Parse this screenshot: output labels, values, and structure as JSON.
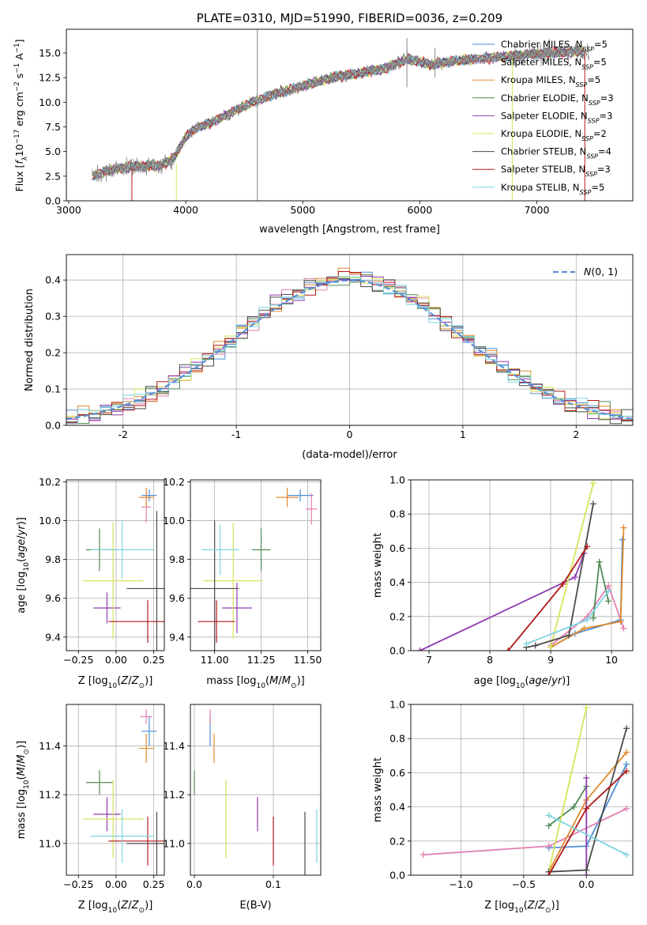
{
  "colors": {
    "Chabrier MILES": "#4c8fd6",
    "Salpeter MILES": "#e27fb0",
    "Kroupa MILES": "#e08a2c",
    "Chabrier ELODIE": "#4f8a55",
    "Salpeter ELODIE": "#8e3bb0",
    "Kroupa ELODIE": "#d7e35a",
    "Chabrier STELIB": "#4a4a4a",
    "Salpeter STELIB": "#b01818",
    "Kroupa STELIB": "#7dd4e0",
    "observed": "#888888",
    "normal_curve": "#5b8fd6"
  },
  "chart_data": [
    {
      "id": "spectrum",
      "type": "line",
      "title": "PLATE=0310, MJD=51990, FIBERID=0036, z=0.209",
      "xlabel": "wavelength [Angstrom, rest frame]",
      "ylabel": "Flux [f_λ 10^-17 erg cm^-2 s^-1 A^-1]",
      "xlim": [
        2980,
        7820
      ],
      "ylim": [
        0,
        17.4
      ],
      "xticks": [
        3000,
        4000,
        5000,
        6000,
        7000
      ],
      "yticks": [
        0.0,
        2.5,
        5.0,
        7.5,
        10.0,
        12.5,
        15.0
      ],
      "legend_position": "top-right",
      "legend": [
        {
          "base": "Chabrier MILES, N",
          "sub": "SSP",
          "tail": "=5"
        },
        {
          "base": "Salpeter MILES, N",
          "sub": "SSP",
          "tail": "=5"
        },
        {
          "base": "Kroupa MILES, N",
          "sub": "SSP",
          "tail": "=5"
        },
        {
          "base": "Chabrier ELODIE, N",
          "sub": "SSP",
          "tail": "=3"
        },
        {
          "base": "Salpeter ELODIE, N",
          "sub": "SSP",
          "tail": "=3"
        },
        {
          "base": "Kroupa ELODIE, N",
          "sub": "SSP",
          "tail": "=2"
        },
        {
          "base": "Chabrier STELIB, N",
          "sub": "SSP",
          "tail": "=4"
        },
        {
          "base": "Salpeter STELIB, N",
          "sub": "SSP",
          "tail": "=3"
        },
        {
          "base": "Kroupa STELIB, N",
          "sub": "SSP",
          "tail": "=5"
        }
      ],
      "continuum": {
        "x": [
          3200,
          3400,
          3600,
          3800,
          3900,
          4000,
          4100,
          4300,
          4500,
          4700,
          4900,
          5100,
          5300,
          5500,
          5700,
          5900,
          6100,
          6300,
          6500,
          6700,
          6900,
          7100,
          7300,
          7400
        ],
        "y": [
          2.5,
          3.3,
          3.5,
          3.6,
          4.4,
          6.5,
          7.4,
          8.4,
          9.6,
          10.6,
          11.3,
          12.0,
          12.6,
          13.0,
          13.4,
          14.4,
          13.8,
          14.2,
          14.4,
          14.6,
          14.8,
          15.0,
          15.1,
          15.1
        ]
      },
      "spikes": [
        {
          "x": 4612,
          "y0": 0,
          "y1": 17.4,
          "color": "observed"
        },
        {
          "x": 3540,
          "y0": 0,
          "y1": 3.3,
          "color": "Salpeter STELIB"
        },
        {
          "x": 3920,
          "y0": 0,
          "y1": 3.8,
          "color": "Kroupa ELODIE"
        },
        {
          "x": 5890,
          "y0": 11.5,
          "y1": 16.5,
          "color": "observed"
        },
        {
          "x": 6130,
          "y0": 12.5,
          "y1": 15.5,
          "color": "observed"
        },
        {
          "x": 6790,
          "y0": 0,
          "y1": 14.6,
          "color": "Kroupa ELODIE"
        },
        {
          "x": 7410,
          "y0": 0,
          "y1": 15.1,
          "color": "Salpeter STELIB"
        }
      ]
    },
    {
      "id": "residuals",
      "type": "bar",
      "xlabel": "(data-model)/error",
      "ylabel": "Normed distribution",
      "xlim": [
        -2.5,
        2.5
      ],
      "ylim": [
        0,
        0.47
      ],
      "xticks": [
        -2,
        -1,
        0,
        1,
        2
      ],
      "yticks": [
        0.0,
        0.1,
        0.2,
        0.3,
        0.4
      ],
      "legend": "N(0,1)",
      "legend_position": "top-right",
      "bins": {
        "start": -2.5,
        "width": 0.1
      }
    },
    {
      "id": "age_vs_Z",
      "type": "scatter",
      "xlabel": "Z [log10(Z/Z⊙)]",
      "ylabel": "age  [log10(age/yr)]",
      "xlim": [
        -0.33,
        0.32
      ],
      "ylim": [
        9.33,
        10.21
      ],
      "xticks": [
        -0.25,
        0.0,
        0.25
      ],
      "xticklabels": [
        "−0.25",
        "0.00",
        "0.25"
      ],
      "yticks": [
        9.4,
        9.6,
        9.8,
        10.0,
        10.2
      ],
      "points": [
        {
          "name": "Chabrier MILES",
          "x": 0.22,
          "xerr": 0.05,
          "y": 10.13,
          "yerr": 0.03
        },
        {
          "name": "Salpeter MILES",
          "x": 0.2,
          "xerr": 0.03,
          "y": 10.07,
          "yerr": 0.08
        },
        {
          "name": "Kroupa MILES",
          "x": 0.2,
          "xerr": 0.05,
          "y": 10.12,
          "yerr": 0.05
        },
        {
          "name": "Chabrier ELODIE",
          "x": -0.11,
          "xerr": 0.09,
          "y": 9.85,
          "yerr": 0.11
        },
        {
          "name": "Salpeter ELODIE",
          "x": -0.06,
          "xerr": 0.09,
          "y": 9.55,
          "yerr": 0.08
        },
        {
          "name": "Kroupa ELODIE",
          "x": -0.02,
          "xerr": 0.2,
          "y": 9.69,
          "yerr": 0.3
        },
        {
          "name": "Chabrier STELIB",
          "x": 0.27,
          "xerr": 0.2,
          "y": 9.65,
          "yerr": 0.4
        },
        {
          "name": "Salpeter STELIB",
          "x": 0.21,
          "xerr": 0.26,
          "y": 9.48,
          "yerr": 0.11
        },
        {
          "name": "Kroupa STELIB",
          "x": 0.04,
          "xerr": 0.21,
          "y": 9.85,
          "yerr": 0.15
        }
      ]
    },
    {
      "id": "age_vs_mass",
      "type": "scatter",
      "xlabel": "mass [log10(M/M⊙)]",
      "ylabel": "",
      "xlim": [
        10.87,
        11.57
      ],
      "ylim": [
        9.33,
        10.21
      ],
      "xticks": [
        11.0,
        11.25,
        11.5
      ],
      "xticklabels": [
        "11.00",
        "11.25",
        "11.50"
      ],
      "yticks": [
        9.4,
        9.6,
        9.8,
        10.0,
        10.2
      ],
      "points": [
        {
          "name": "Chabrier MILES",
          "x": 11.46,
          "xerr": 0.07,
          "y": 10.13,
          "yerr": 0.03
        },
        {
          "name": "Salpeter MILES",
          "x": 11.52,
          "xerr": 0.03,
          "y": 10.06,
          "yerr": 0.08
        },
        {
          "name": "Kroupa MILES",
          "x": 11.39,
          "xerr": 0.06,
          "y": 10.12,
          "yerr": 0.05
        },
        {
          "name": "Chabrier ELODIE",
          "x": 11.25,
          "xerr": 0.05,
          "y": 9.85,
          "yerr": 0.11
        },
        {
          "name": "Salpeter ELODIE",
          "x": 11.12,
          "xerr": 0.08,
          "y": 9.55,
          "yerr": 0.13
        },
        {
          "name": "Kroupa ELODIE",
          "x": 11.1,
          "xerr": 0.16,
          "y": 9.69,
          "yerr": 0.3
        },
        {
          "name": "Chabrier STELIB",
          "x": 11.0,
          "xerr": 0.13,
          "y": 9.65,
          "yerr": 0.35
        },
        {
          "name": "Salpeter STELIB",
          "x": 11.01,
          "xerr": 0.1,
          "y": 9.48,
          "yerr": 0.11
        },
        {
          "name": "Kroupa STELIB",
          "x": 11.03,
          "xerr": 0.1,
          "y": 9.85,
          "yerr": 0.13
        }
      ]
    },
    {
      "id": "mass_weight_vs_age",
      "type": "line",
      "xlabel": "age  [log10(age/yr)]",
      "ylabel": "mass weight",
      "xlim": [
        6.7,
        10.35
      ],
      "ylim": [
        0.0,
        1.0
      ],
      "xticks": [
        7,
        8,
        9,
        10
      ],
      "yticks": [
        0.0,
        0.2,
        0.4,
        0.6,
        0.8,
        1.0
      ],
      "series": [
        {
          "name": "Chabrier MILES",
          "x": [
            9.0,
            9.4,
            10.15,
            10.18
          ],
          "y": [
            0.02,
            0.1,
            0.18,
            0.65
          ]
        },
        {
          "name": "Salpeter MILES",
          "x": [
            9.0,
            9.6,
            9.95,
            10.2
          ],
          "y": [
            0.03,
            0.2,
            0.38,
            0.13
          ]
        },
        {
          "name": "Kroupa MILES",
          "x": [
            9.0,
            9.55,
            10.15,
            10.2
          ],
          "y": [
            0.02,
            0.13,
            0.17,
            0.72
          ]
        },
        {
          "name": "Chabrier ELODIE",
          "x": [
            9.7,
            9.8,
            9.95
          ],
          "y": [
            0.19,
            0.52,
            0.29
          ]
        },
        {
          "name": "Salpeter ELODIE",
          "x": [
            6.85,
            9.4,
            9.55
          ],
          "y": [
            0.0,
            0.43,
            0.57
          ]
        },
        {
          "name": "Kroupa ELODIE",
          "x": [
            9.0,
            9.7
          ],
          "y": [
            0.02,
            0.98
          ]
        },
        {
          "name": "Chabrier STELIB",
          "x": [
            8.6,
            8.75,
            9.3,
            9.7
          ],
          "y": [
            0.02,
            0.03,
            0.09,
            0.86
          ]
        },
        {
          "name": "Salpeter STELIB",
          "x": [
            8.3,
            9.2,
            9.6
          ],
          "y": [
            0.0,
            0.39,
            0.61
          ]
        },
        {
          "name": "Kroupa STELIB",
          "x": [
            8.6,
            9.6,
            9.95
          ],
          "y": [
            0.04,
            0.18,
            0.35
          ]
        }
      ]
    },
    {
      "id": "mass_vs_Z",
      "type": "scatter",
      "xlabel": "Z [log10(Z/Z⊙)]",
      "ylabel": "mass [log10(M/M⊙)]",
      "xlim": [
        -0.33,
        0.32
      ],
      "ylim": [
        10.87,
        11.57
      ],
      "xticks": [
        -0.25,
        0.0,
        0.25
      ],
      "xticklabels": [
        "−0.25",
        "0.00",
        "0.25"
      ],
      "yticks": [
        11.0,
        11.2,
        11.4
      ],
      "points": [
        {
          "name": "Chabrier MILES",
          "x": 0.22,
          "xerr": 0.05,
          "y": 11.46,
          "yerr": 0.06
        },
        {
          "name": "Salpeter MILES",
          "x": 0.2,
          "xerr": 0.04,
          "y": 11.52,
          "yerr": 0.03
        },
        {
          "name": "Kroupa MILES",
          "x": 0.2,
          "xerr": 0.05,
          "y": 11.39,
          "yerr": 0.06
        },
        {
          "name": "Chabrier ELODIE",
          "x": -0.11,
          "xerr": 0.09,
          "y": 11.25,
          "yerr": 0.05
        },
        {
          "name": "Salpeter ELODIE",
          "x": -0.06,
          "xerr": 0.09,
          "y": 11.12,
          "yerr": 0.07
        },
        {
          "name": "Kroupa ELODIE",
          "x": -0.02,
          "xerr": 0.2,
          "y": 11.1,
          "yerr": 0.16
        },
        {
          "name": "Chabrier STELIB",
          "x": 0.27,
          "xerr": 0.2,
          "y": 11.0,
          "yerr": 0.13
        },
        {
          "name": "Salpeter STELIB",
          "x": 0.21,
          "xerr": 0.26,
          "y": 11.01,
          "yerr": 0.1
        },
        {
          "name": "Kroupa STELIB",
          "x": 0.04,
          "xerr": 0.21,
          "y": 11.03,
          "yerr": 0.11
        }
      ]
    },
    {
      "id": "mass_vs_EBV",
      "type": "scatter",
      "xlabel": "E(B-V)",
      "ylabel": "",
      "xlim": [
        -0.005,
        0.16
      ],
      "ylim": [
        10.87,
        11.57
      ],
      "xticks": [
        0.0,
        0.1
      ],
      "xticklabels": [
        "0.0",
        "0.1"
      ],
      "yticks": [
        11.0,
        11.2,
        11.4
      ],
      "points": [
        {
          "name": "Chabrier MILES",
          "x": 0.02,
          "xerr": 0.0,
          "y": 11.46,
          "yerr": 0.06
        },
        {
          "name": "Salpeter MILES",
          "x": 0.02,
          "xerr": 0.0,
          "y": 11.52,
          "yerr": 0.03
        },
        {
          "name": "Kroupa MILES",
          "x": 0.025,
          "xerr": 0.0,
          "y": 11.39,
          "yerr": 0.06
        },
        {
          "name": "Chabrier ELODIE",
          "x": 0.0,
          "xerr": 0.0,
          "y": 11.25,
          "yerr": 0.05
        },
        {
          "name": "Salpeter ELODIE",
          "x": 0.08,
          "xerr": 0.0,
          "y": 11.12,
          "yerr": 0.07
        },
        {
          "name": "Kroupa ELODIE",
          "x": 0.04,
          "xerr": 0.0,
          "y": 11.1,
          "yerr": 0.16
        },
        {
          "name": "Chabrier STELIB",
          "x": 0.14,
          "xerr": 0.0,
          "y": 11.0,
          "yerr": 0.13
        },
        {
          "name": "Salpeter STELIB",
          "x": 0.1,
          "xerr": 0.0,
          "y": 11.01,
          "yerr": 0.1
        },
        {
          "name": "Kroupa STELIB",
          "x": 0.155,
          "xerr": 0.0,
          "y": 11.03,
          "yerr": 0.11
        }
      ]
    },
    {
      "id": "mass_weight_vs_Z",
      "type": "line",
      "xlabel": "Z [log10(Z/Z⊙)]",
      "ylabel": "mass weight",
      "xlim": [
        -1.4,
        0.37
      ],
      "ylim": [
        0.0,
        1.0
      ],
      "xticks": [
        -1.0,
        -0.5,
        0.0
      ],
      "xticklabels": [
        "−1.0",
        "−0.5",
        "0.0"
      ],
      "yticks": [
        0.0,
        0.2,
        0.4,
        0.6,
        0.8,
        1.0
      ],
      "series": [
        {
          "name": "Chabrier MILES",
          "x": [
            -0.3,
            0.0,
            0.32
          ],
          "y": [
            0.16,
            0.17,
            0.65
          ]
        },
        {
          "name": "Salpeter MILES",
          "x": [
            -1.3,
            -0.3,
            0.32
          ],
          "y": [
            0.12,
            0.17,
            0.39
          ]
        },
        {
          "name": "Kroupa MILES",
          "x": [
            -0.3,
            0.0,
            0.32
          ],
          "y": [
            0.02,
            0.44,
            0.72
          ]
        },
        {
          "name": "Chabrier ELODIE",
          "x": [
            -0.3,
            -0.1,
            0.0
          ],
          "y": [
            0.29,
            0.4,
            0.52
          ]
        },
        {
          "name": "Salpeter ELODIE",
          "x": [
            0.0,
            0.0
          ],
          "y": [
            0.0,
            0.57
          ]
        },
        {
          "name": "Kroupa ELODIE",
          "x": [
            -0.3,
            0.0
          ],
          "y": [
            0.02,
            0.98
          ]
        },
        {
          "name": "Chabrier STELIB",
          "x": [
            -0.3,
            0.0,
            0.32
          ],
          "y": [
            0.02,
            0.03,
            0.86
          ]
        },
        {
          "name": "Salpeter STELIB",
          "x": [
            -0.3,
            0.0,
            0.32
          ],
          "y": [
            0.0,
            0.39,
            0.61
          ]
        },
        {
          "name": "Kroupa STELIB",
          "x": [
            -0.3,
            0.32
          ],
          "y": [
            0.35,
            0.12
          ]
        }
      ]
    }
  ]
}
